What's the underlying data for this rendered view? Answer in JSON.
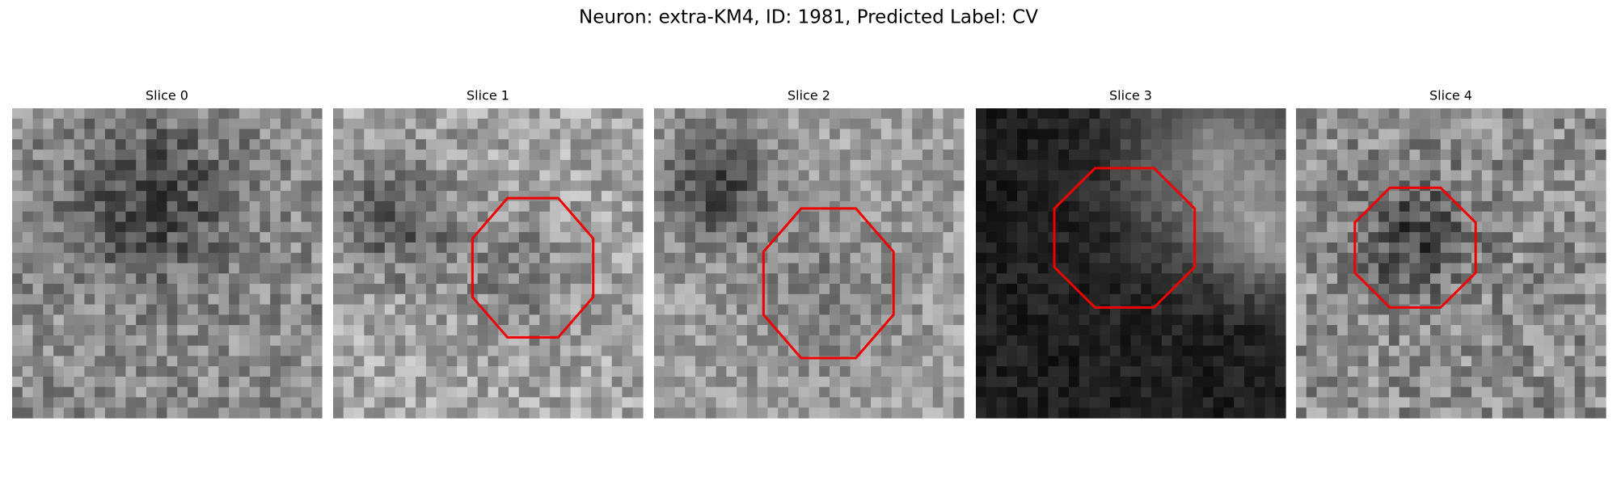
{
  "title": "Neuron: extra-KM4, ID: 1981, Predicted Label: CV",
  "panels": [
    {
      "label": "Slice 0"
    },
    {
      "label": "Slice 1"
    },
    {
      "label": "Slice 2"
    },
    {
      "label": "Slice 3"
    },
    {
      "label": "Slice 4"
    }
  ]
}
